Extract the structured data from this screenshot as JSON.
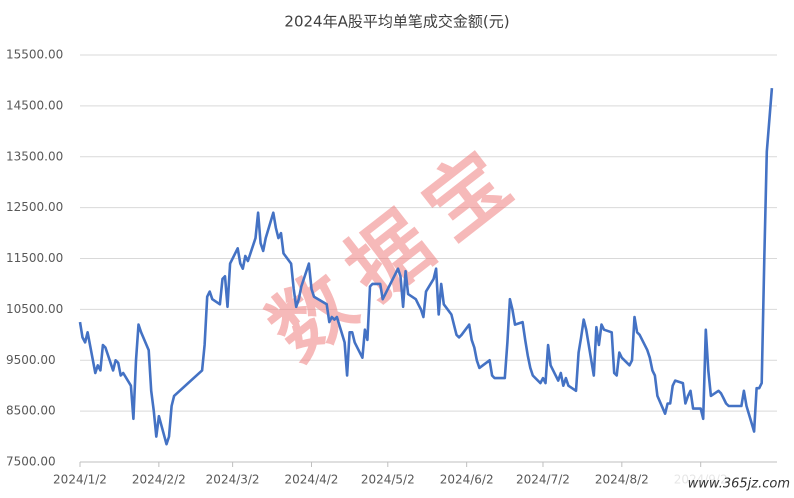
{
  "chart_data": {
    "type": "line",
    "title": "2024年A股平均单笔成交金额(元)",
    "x": [
      "2024/1/2",
      "2024/1/3",
      "2024/1/4",
      "2024/1/5",
      "2024/1/8",
      "2024/1/9",
      "2024/1/10",
      "2024/1/11",
      "2024/1/12",
      "2024/1/15",
      "2024/1/16",
      "2024/1/17",
      "2024/1/18",
      "2024/1/19",
      "2024/1/22",
      "2024/1/23",
      "2024/1/24",
      "2024/1/25",
      "2024/1/26",
      "2024/1/29",
      "2024/1/30",
      "2024/1/31",
      "2024/2/1",
      "2024/2/2",
      "2024/2/5",
      "2024/2/6",
      "2024/2/7",
      "2024/2/8",
      "2024/2/19",
      "2024/2/20",
      "2024/2/21",
      "2024/2/22",
      "2024/2/23",
      "2024/2/26",
      "2024/2/27",
      "2024/2/28",
      "2024/2/29",
      "2024/3/1",
      "2024/3/4",
      "2024/3/5",
      "2024/3/6",
      "2024/3/7",
      "2024/3/8",
      "2024/3/11",
      "2024/3/12",
      "2024/3/13",
      "2024/3/14",
      "2024/3/15",
      "2024/3/18",
      "2024/3/19",
      "2024/3/20",
      "2024/3/21",
      "2024/3/22",
      "2024/3/25",
      "2024/3/26",
      "2024/3/27",
      "2024/3/28",
      "2024/3/29",
      "2024/4/1",
      "2024/4/2",
      "2024/4/3",
      "2024/4/8",
      "2024/4/9",
      "2024/4/10",
      "2024/4/11",
      "2024/4/12",
      "2024/4/15",
      "2024/4/16",
      "2024/4/17",
      "2024/4/18",
      "2024/4/19",
      "2024/4/22",
      "2024/4/23",
      "2024/4/24",
      "2024/4/25",
      "2024/4/26",
      "2024/4/29",
      "2024/4/30",
      "2024/5/6",
      "2024/5/7",
      "2024/5/8",
      "2024/5/9",
      "2024/5/10",
      "2024/5/13",
      "2024/5/14",
      "2024/5/15",
      "2024/5/16",
      "2024/5/17",
      "2024/5/20",
      "2024/5/21",
      "2024/5/22",
      "2024/5/23",
      "2024/5/24",
      "2024/5/27",
      "2024/5/28",
      "2024/5/29",
      "2024/5/30",
      "2024/5/31",
      "2024/6/3",
      "2024/6/4",
      "2024/6/5",
      "2024/6/6",
      "2024/6/7",
      "2024/6/11",
      "2024/6/12",
      "2024/6/13",
      "2024/6/14",
      "2024/6/17",
      "2024/6/18",
      "2024/6/19",
      "2024/6/20",
      "2024/6/21",
      "2024/6/24",
      "2024/6/25",
      "2024/6/26",
      "2024/6/27",
      "2024/6/28",
      "2024/7/1",
      "2024/7/2",
      "2024/7/3",
      "2024/7/4",
      "2024/7/5",
      "2024/7/8",
      "2024/7/9",
      "2024/7/10",
      "2024/7/11",
      "2024/7/12",
      "2024/7/15",
      "2024/7/16",
      "2024/7/17",
      "2024/7/18",
      "2024/7/19",
      "2024/7/22",
      "2024/7/23",
      "2024/7/24",
      "2024/7/25",
      "2024/7/26",
      "2024/7/29",
      "2024/7/30",
      "2024/7/31",
      "2024/8/1",
      "2024/8/2",
      "2024/8/5",
      "2024/8/6",
      "2024/8/7",
      "2024/8/8",
      "2024/8/9",
      "2024/8/12",
      "2024/8/13",
      "2024/8/14",
      "2024/8/15",
      "2024/8/16",
      "2024/8/19",
      "2024/8/20",
      "2024/8/21",
      "2024/8/22",
      "2024/8/23",
      "2024/8/26",
      "2024/8/27",
      "2024/8/28",
      "2024/8/29",
      "2024/8/30",
      "2024/9/2",
      "2024/9/3",
      "2024/9/4",
      "2024/9/5",
      "2024/9/6",
      "2024/9/9",
      "2024/9/10",
      "2024/9/11",
      "2024/9/12",
      "2024/9/13",
      "2024/9/18",
      "2024/9/19",
      "2024/9/20",
      "2024/9/23",
      "2024/9/24",
      "2024/9/25",
      "2024/9/26",
      "2024/9/27",
      "2024/9/28",
      "2024/9/30"
    ],
    "series": [
      {
        "name": "平均单笔成交金额",
        "color": "#4472c4",
        "values": [
          10250,
          9950,
          9850,
          10050,
          9250,
          9400,
          9300,
          9800,
          9750,
          9300,
          9500,
          9450,
          9200,
          9250,
          9000,
          8350,
          9500,
          10200,
          10050,
          9700,
          8900,
          8500,
          8000,
          8400,
          7850,
          8000,
          8600,
          8800,
          9300,
          9800,
          10750,
          10850,
          10700,
          10600,
          11100,
          11150,
          10550,
          11400,
          11700,
          11400,
          11300,
          11550,
          11450,
          11900,
          12400,
          11800,
          11650,
          11900,
          12400,
          12100,
          11900,
          12000,
          11600,
          11400,
          10900,
          10550,
          10700,
          10950,
          11400,
          10900,
          10750,
          10600,
          10250,
          10350,
          10300,
          10350,
          9850,
          9200,
          10050,
          10050,
          9850,
          9550,
          10100,
          9900,
          10950,
          11000,
          11000,
          10700,
          11300,
          11150,
          10550,
          11250,
          10800,
          10700,
          10600,
          10500,
          10350,
          10850,
          11100,
          11300,
          10400,
          11000,
          10600,
          10400,
          10200,
          10000,
          9950,
          10000,
          10200,
          9900,
          9750,
          9500,
          9350,
          9500,
          9200,
          9150,
          9150,
          9150,
          9850,
          10700,
          10500,
          10200,
          10250,
          9900,
          9600,
          9350,
          9200,
          9050,
          9150,
          9050,
          9800,
          9400,
          9100,
          9250,
          9000,
          9150,
          9000,
          8900,
          9650,
          9950,
          10300,
          10100,
          9200,
          10150,
          9800,
          10200,
          10100,
          10050,
          9250,
          9200,
          9650,
          9550,
          9400,
          9500,
          10350,
          10050,
          10000,
          9700,
          9550,
          9300,
          9200,
          8800,
          8450,
          8650,
          8650,
          9000,
          9100,
          9050,
          8650,
          8800,
          8900,
          8550,
          8550,
          8350,
          10100,
          9300,
          8800,
          8900,
          8850,
          8750,
          8650,
          8600,
          8600,
          8900,
          8600,
          8100,
          8950,
          8950,
          9050,
          11500,
          13600,
          14850
        ]
      }
    ],
    "xlim": [
      "2024/1/2",
      "2024/10/2"
    ],
    "xticks": [
      "2024/1/2",
      "2024/2/2",
      "2024/3/2",
      "2024/4/2",
      "2024/5/2",
      "2024/6/2",
      "2024/7/2",
      "2024/8/2",
      "2024/9/2"
    ],
    "ylim": [
      7500,
      15500
    ],
    "yticks": [
      {
        "value": 7500,
        "label": "7500.00"
      },
      {
        "value": 8500,
        "label": "8500.00"
      },
      {
        "value": 9500,
        "label": "9500.00"
      },
      {
        "value": 10500,
        "label": "10500.00"
      },
      {
        "value": 11500,
        "label": "11500.00"
      },
      {
        "value": 12500,
        "label": "12500.00"
      },
      {
        "value": 13500,
        "label": "13500.00"
      },
      {
        "value": 14500,
        "label": "14500.00"
      },
      {
        "value": 15500,
        "label": "15500.00"
      }
    ],
    "grid": true,
    "watermarks": [
      "数据宝",
      "www.365jz.com"
    ]
  }
}
